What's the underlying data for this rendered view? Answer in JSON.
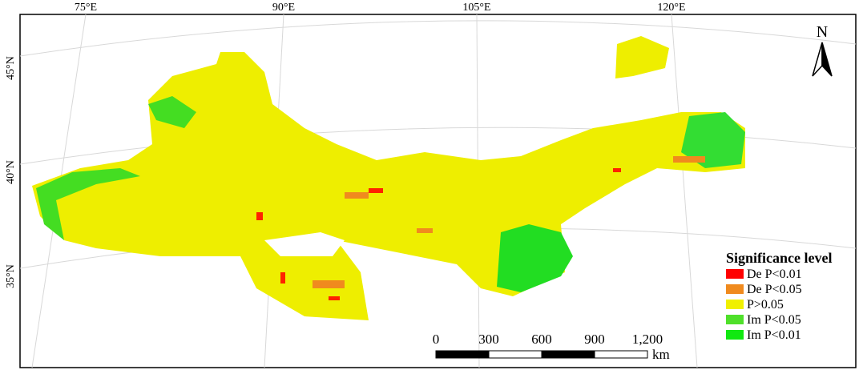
{
  "map": {
    "longitude_labels": [
      "75°E",
      "90°E",
      "105°E",
      "120°E"
    ],
    "latitude_labels": [
      "45°N",
      "40°N",
      "35°N"
    ],
    "north_arrow": "N",
    "legend": {
      "title": "Significance level",
      "items": [
        {
          "label": "De P<0.01",
          "color": "#ff0000"
        },
        {
          "label": "De P<0.05",
          "color": "#f08a1e"
        },
        {
          "label": "P>0.05",
          "color": "#f0f000"
        },
        {
          "label": "Im P<0.05",
          "color": "#4fe02a"
        },
        {
          "label": "Im P<0.01",
          "color": "#11e811"
        }
      ]
    },
    "scale_bar": {
      "labels": [
        "0",
        "300",
        "600",
        "900",
        "1,200"
      ],
      "unit": "km"
    }
  }
}
